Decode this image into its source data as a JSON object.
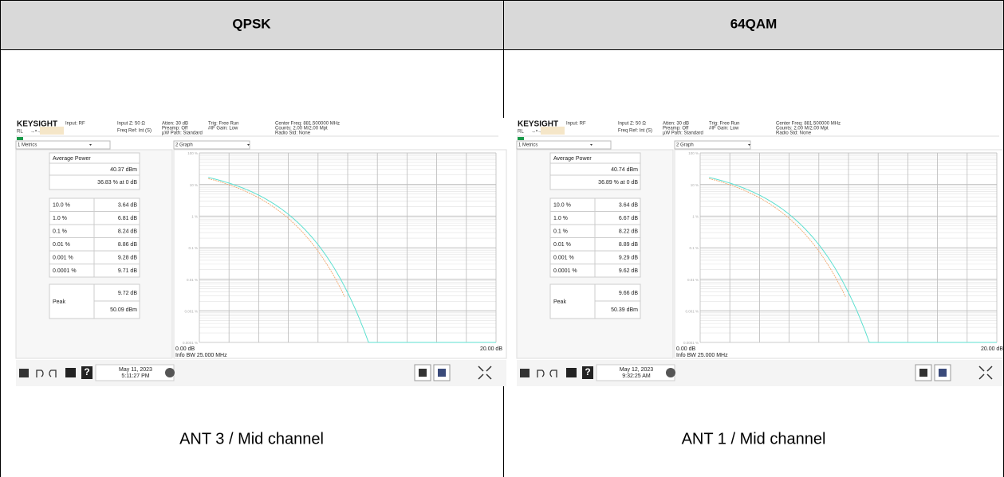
{
  "table": {
    "headers": [
      "QPSK",
      "64QAM"
    ],
    "cells": [
      {
        "screenshot": {
          "brand": "KEYSIGHT",
          "status": [
            "Input: RF",
            "Input Z: 50 Ω",
            "Atten: 30 dB",
            "Trig: Free Run",
            "Center Freq: 881.500000 MHz",
            "RL",
            "Freq Ref: Int (S)",
            "Preamp: Off",
            "#IF Gain: Low",
            "Counts: 2.00 M/2.00 Mpt",
            "µW Path: Standard",
            "Radio Std: None"
          ],
          "metrics_label": "1 Metrics",
          "graph_label": "2 Graph",
          "average_label": "Average Power",
          "average_power": "40.37 dBm",
          "average_prob": "36.83 % at 0 dB",
          "rows": [
            [
              "10.0 %",
              "3.64 dB"
            ],
            [
              "1.0 %",
              "6.81 dB"
            ],
            [
              "0.1 %",
              "8.24 dB"
            ],
            [
              "0.01 %",
              "8.86 dB"
            ],
            [
              "0.001 %",
              "9.28 dB"
            ],
            [
              "0.0001 %",
              "9.71 dB"
            ]
          ],
          "peak_label": "Peak",
          "peak_db": "9.72 dB",
          "peak_dbm": "50.09 dBm",
          "y_labels": [
            "100 %",
            "10 %",
            "1 %",
            "0.1 %",
            "0.01 %",
            "0.001 %",
            "0.0001 %"
          ],
          "x_start": "0.00 dB",
          "x_end": "20.00 dB",
          "info": "Info BW 25.000 MHz",
          "date": "May 11, 2023",
          "time": "5:11:27 PM"
        },
        "caption": "ANT 3 / Mid channel"
      },
      {
        "screenshot": {
          "brand": "KEYSIGHT",
          "status": [
            "Input: RF",
            "Input Z: 50 Ω",
            "Atten: 30 dB",
            "Trig: Free Run",
            "Center Freq: 881.500000 MHz",
            "RL",
            "Freq Ref: Int (S)",
            "Preamp: Off",
            "#IF Gain: Low",
            "Counts: 2.00 M/2.00 Mpt",
            "µW Path: Standard",
            "Radio Std: None"
          ],
          "metrics_label": "1 Metrics",
          "graph_label": "2 Graph",
          "average_label": "Average Power",
          "average_power": "40.74 dBm",
          "average_prob": "36.89 % at 0 dB",
          "rows": [
            [
              "10.0 %",
              "3.64 dB"
            ],
            [
              "1.0 %",
              "6.67 dB"
            ],
            [
              "0.1 %",
              "8.22 dB"
            ],
            [
              "0.01 %",
              "8.89 dB"
            ],
            [
              "0.001 %",
              "9.29 dB"
            ],
            [
              "0.0001 %",
              "9.62 dB"
            ]
          ],
          "peak_label": "Peak",
          "peak_db": "9.66 dB",
          "peak_dbm": "50.39 dBm",
          "y_labels": [
            "100 %",
            "10 %",
            "1 %",
            "0.1 %",
            "0.01 %",
            "0.001 %",
            "0.0001 %"
          ],
          "x_start": "0.00 dB",
          "x_end": "20.00 dB",
          "info": "Info BW 25.000 MHz",
          "date": "May 12, 2023",
          "time": "9:32:25 AM"
        },
        "caption": "ANT 1 / Mid channel"
      }
    ]
  }
}
